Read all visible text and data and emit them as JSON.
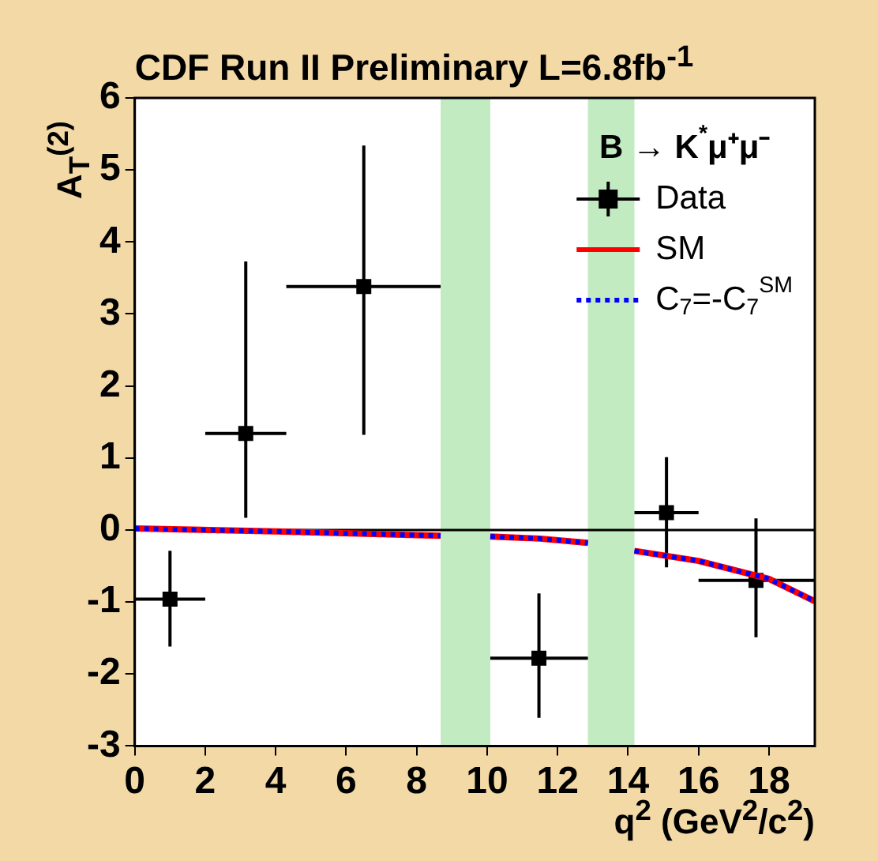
{
  "chart_data": {
    "type": "scatter",
    "title": "CDF Run II Preliminary L=6.8fb$^{-1}$",
    "xlabel": "q$^{2}$ (GeV$^{2}$/c$^{2}$)",
    "ylabel": "A$_{T}$$^{(2)}$",
    "legend_title": "B → K$^{*}$μ⁺μ⁻",
    "x": [
      1.0,
      3.15,
      6.5,
      11.47,
      15.09,
      17.63
    ],
    "series": [
      {
        "name": "Data",
        "color": "#000000",
        "marker": "square",
        "values": [
          -0.96,
          1.34,
          3.38,
          -1.78,
          0.24,
          -0.7
        ],
        "errors": [
          [
            -1.62,
            -0.29
          ],
          [
            0.17,
            3.73
          ],
          [
            1.32,
            5.34
          ],
          [
            -2.61,
            -0.88
          ],
          [
            -0.52,
            1.01
          ],
          [
            -1.49,
            0.16
          ]
        ],
        "xerrors": [
          [
            0,
            2
          ],
          [
            2,
            4.3
          ],
          [
            4.3,
            8.68
          ],
          [
            10.09,
            12.86
          ],
          [
            14.18,
            16
          ],
          [
            16,
            19.3
          ]
        ]
      },
      {
        "name": "SM",
        "type": "line",
        "color": "#ff0000",
        "line_style": "solid",
        "marker": "none",
        "x": [
          0,
          4,
          8.68,
          9.4,
          10.09,
          11.5,
          12.86,
          13.5,
          14.18,
          16,
          18,
          19.3
        ],
        "values": [
          0.02,
          -0.02,
          -0.08,
          null,
          -0.09,
          -0.12,
          -0.18,
          null,
          -0.29,
          -0.43,
          -0.68,
          -0.99
        ]
      },
      {
        "name": "C$_{7}$=-C$_{7}$$^{SM}$",
        "type": "line",
        "color": "#0000ff",
        "line_style": "dotted",
        "marker": "none",
        "x": [
          0,
          4,
          8.68,
          9.4,
          10.09,
          11.5,
          12.86,
          13.5,
          14.18,
          16,
          18,
          19.3
        ],
        "values": [
          0.02,
          -0.02,
          -0.08,
          null,
          -0.09,
          -0.12,
          -0.18,
          null,
          -0.29,
          -0.43,
          -0.68,
          -0.99
        ]
      }
    ],
    "xlim": [
      0,
      19.3
    ],
    "xticks": [
      0,
      2,
      4,
      6,
      8,
      10,
      12,
      14,
      16,
      18
    ],
    "ylim": [
      -3,
      6
    ],
    "yticks": [
      -3,
      -2,
      -1,
      0,
      1,
      2,
      3,
      4,
      5,
      6
    ],
    "ref_lines": [
      {
        "axis": "y",
        "value": 0,
        "color": "#000000"
      }
    ],
    "bands": [
      {
        "axis": "x",
        "from": 8.68,
        "to": 10.09,
        "color": "#66cc66"
      },
      {
        "axis": "x",
        "from": 12.86,
        "to": 14.18,
        "color": "#66cc66"
      }
    ],
    "grid": false,
    "legend": "top right"
  }
}
